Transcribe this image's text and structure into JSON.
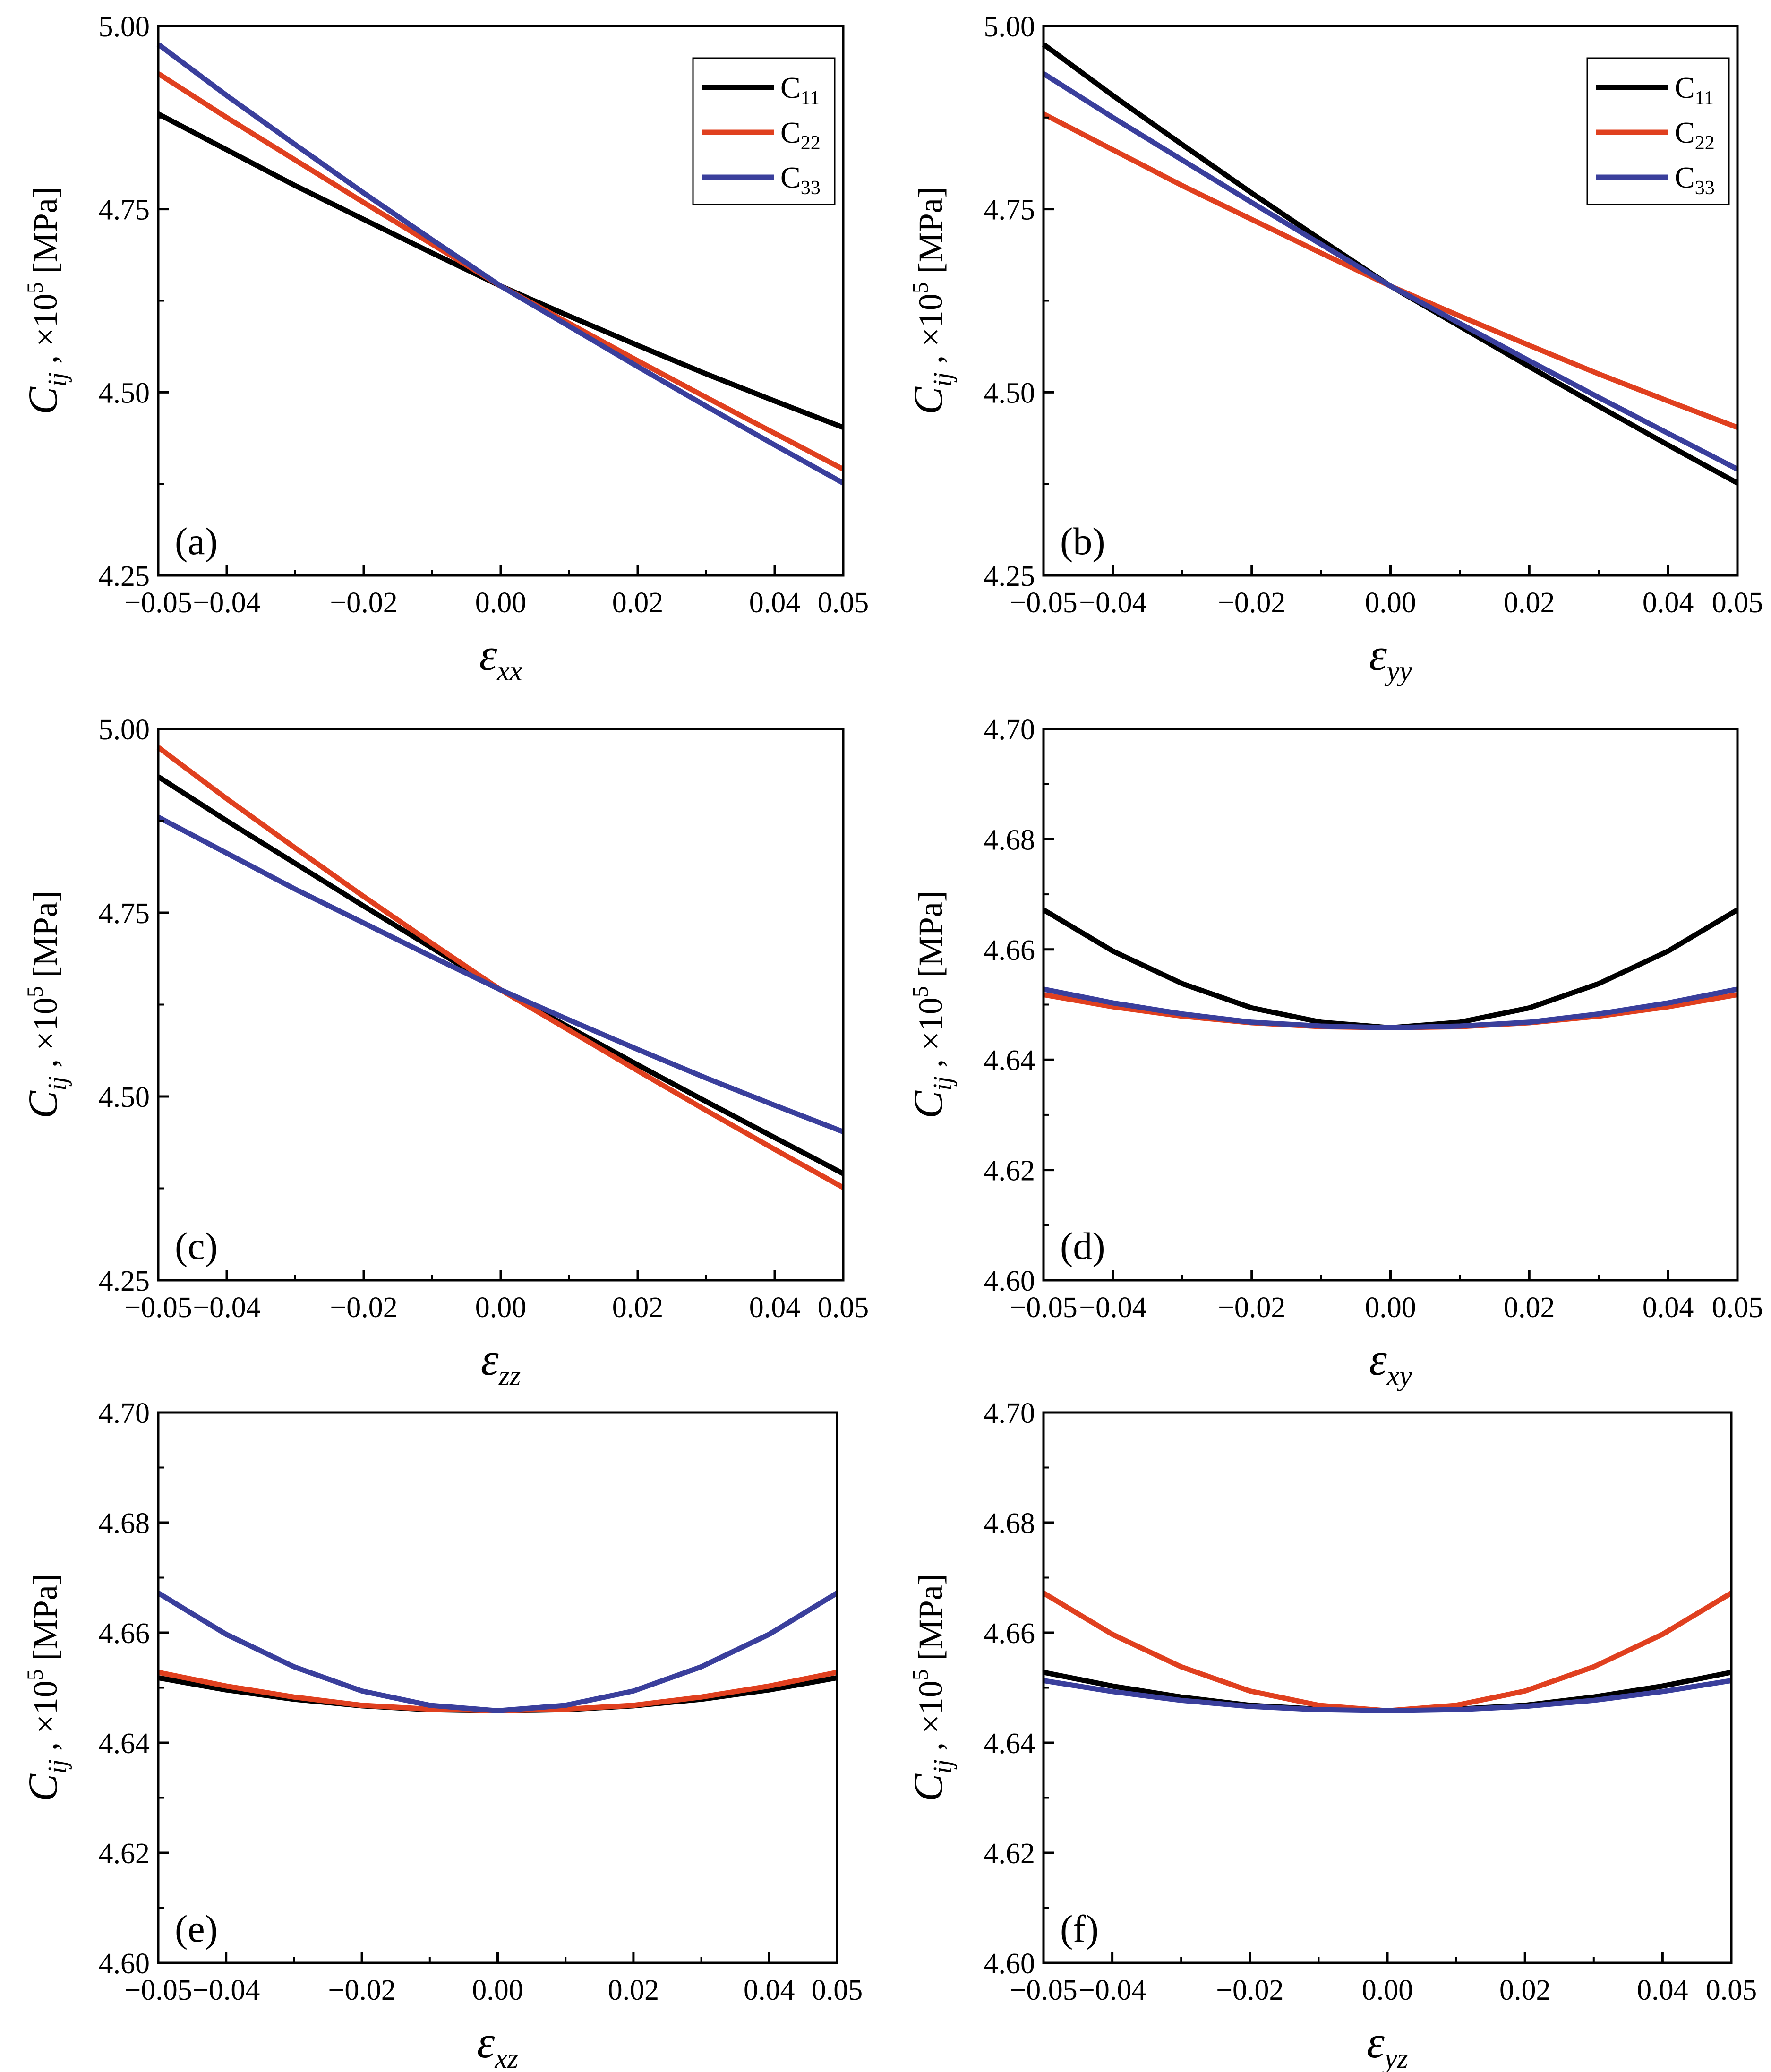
{
  "chart_data": [
    {
      "panel": "(a)",
      "type": "line",
      "xlabel": "ε",
      "xlabel_sub": "xx",
      "ylabel": {
        "sym": "C",
        "sub": "ij",
        "mid": " ,  ×10",
        "exp": "5",
        "unit": " [MPa]"
      },
      "xlim": [
        -0.05,
        0.05
      ],
      "ylim": [
        4.25,
        5.0
      ],
      "xticks": [
        "−0.05",
        "−0.04",
        "−0.02",
        "0.00",
        "0.02",
        "0.04",
        "0.05"
      ],
      "xtick_values": [
        -0.05,
        -0.04,
        -0.02,
        0.0,
        0.02,
        0.04,
        0.05
      ],
      "yticks": [
        "4.25",
        "4.50",
        "4.75",
        "5.00"
      ],
      "ytick_values": [
        4.25,
        4.5,
        4.75,
        5.0
      ],
      "legend": {
        "position": "top-right",
        "entries": [
          {
            "main": "C",
            "sub": "11",
            "color": "#000000"
          },
          {
            "main": "C",
            "sub": "22",
            "color": "#e0401f"
          },
          {
            "main": "C",
            "sub": "33",
            "color": "#3a3f9c"
          }
        ]
      },
      "series": [
        {
          "name": "C11",
          "color": "#000000",
          "x": [
            -0.05,
            -0.04,
            -0.03,
            -0.02,
            -0.01,
            0.0,
            0.01,
            0.02,
            0.03,
            0.04,
            0.05
          ],
          "values": [
            4.88,
            4.831,
            4.782,
            4.736,
            4.69,
            4.645,
            4.604,
            4.564,
            4.525,
            4.488,
            4.452
          ]
        },
        {
          "name": "C22",
          "color": "#e0401f",
          "x": [
            -0.05,
            -0.04,
            -0.03,
            -0.02,
            -0.01,
            0.0,
            0.01,
            0.02,
            0.03,
            0.04,
            0.05
          ],
          "values": [
            4.935,
            4.875,
            4.817,
            4.759,
            4.702,
            4.645,
            4.594,
            4.543,
            4.493,
            4.444,
            4.395
          ]
        },
        {
          "name": "C33",
          "color": "#3a3f9c",
          "x": [
            -0.05,
            -0.04,
            -0.03,
            -0.02,
            -0.01,
            0.0,
            0.01,
            0.02,
            0.03,
            0.04,
            0.05
          ],
          "values": [
            4.975,
            4.905,
            4.838,
            4.772,
            4.708,
            4.645,
            4.59,
            4.535,
            4.481,
            4.428,
            4.376
          ]
        }
      ]
    },
    {
      "panel": "(b)",
      "type": "line",
      "xlabel": "ε",
      "xlabel_sub": "yy",
      "ylabel": {
        "sym": "C",
        "sub": "ij",
        "mid": " ,  ×10",
        "exp": "5",
        "unit": " [MPa]"
      },
      "xlim": [
        -0.05,
        0.05
      ],
      "ylim": [
        4.25,
        5.0
      ],
      "xticks": [
        "−0.05",
        "−0.04",
        "−0.02",
        "0.00",
        "0.02",
        "0.04",
        "0.05"
      ],
      "xtick_values": [
        -0.05,
        -0.04,
        -0.02,
        0.0,
        0.02,
        0.04,
        0.05
      ],
      "yticks": [
        "4.25",
        "4.50",
        "4.75",
        "5.00"
      ],
      "ytick_values": [
        4.25,
        4.5,
        4.75,
        5.0
      ],
      "legend": {
        "position": "top-right",
        "entries": [
          {
            "main": "C",
            "sub": "11",
            "color": "#000000"
          },
          {
            "main": "C",
            "sub": "22",
            "color": "#e0401f"
          },
          {
            "main": "C",
            "sub": "33",
            "color": "#3a3f9c"
          }
        ]
      },
      "series": [
        {
          "name": "C11",
          "color": "#000000",
          "x": [
            -0.05,
            -0.04,
            -0.03,
            -0.02,
            -0.01,
            0.0,
            0.01,
            0.02,
            0.03,
            0.04,
            0.05
          ],
          "values": [
            4.975,
            4.905,
            4.838,
            4.772,
            4.708,
            4.645,
            4.59,
            4.535,
            4.481,
            4.428,
            4.376
          ]
        },
        {
          "name": "C22",
          "color": "#e0401f",
          "x": [
            -0.05,
            -0.04,
            -0.03,
            -0.02,
            -0.01,
            0.0,
            0.01,
            0.02,
            0.03,
            0.04,
            0.05
          ],
          "values": [
            4.88,
            4.831,
            4.782,
            4.736,
            4.69,
            4.645,
            4.604,
            4.564,
            4.525,
            4.488,
            4.452
          ]
        },
        {
          "name": "C33",
          "color": "#3a3f9c",
          "x": [
            -0.05,
            -0.04,
            -0.03,
            -0.02,
            -0.01,
            0.0,
            0.01,
            0.02,
            0.03,
            0.04,
            0.05
          ],
          "values": [
            4.935,
            4.875,
            4.817,
            4.759,
            4.702,
            4.645,
            4.594,
            4.543,
            4.493,
            4.444,
            4.395
          ]
        }
      ]
    },
    {
      "panel": "(c)",
      "type": "line",
      "xlabel": "ε",
      "xlabel_sub": "zz",
      "ylabel": {
        "sym": "C",
        "sub": "ij",
        "mid": " ,  ×10",
        "exp": "5",
        "unit": " [MPa]"
      },
      "xlim": [
        -0.05,
        0.05
      ],
      "ylim": [
        4.25,
        5.0
      ],
      "xticks": [
        "−0.05",
        "−0.04",
        "−0.02",
        "0.00",
        "0.02",
        "0.04",
        "0.05"
      ],
      "xtick_values": [
        -0.05,
        -0.04,
        -0.02,
        0.0,
        0.02,
        0.04,
        0.05
      ],
      "yticks": [
        "4.25",
        "4.50",
        "4.75",
        "5.00"
      ],
      "ytick_values": [
        4.25,
        4.5,
        4.75,
        5.0
      ],
      "legend": null,
      "series": [
        {
          "name": "C11",
          "color": "#000000",
          "x": [
            -0.05,
            -0.04,
            -0.03,
            -0.02,
            -0.01,
            0.0,
            0.01,
            0.02,
            0.03,
            0.04,
            0.05
          ],
          "values": [
            4.935,
            4.875,
            4.817,
            4.759,
            4.702,
            4.645,
            4.594,
            4.543,
            4.493,
            4.444,
            4.395
          ]
        },
        {
          "name": "C22",
          "color": "#e0401f",
          "x": [
            -0.05,
            -0.04,
            -0.03,
            -0.02,
            -0.01,
            0.0,
            0.01,
            0.02,
            0.03,
            0.04,
            0.05
          ],
          "values": [
            4.975,
            4.905,
            4.838,
            4.772,
            4.708,
            4.645,
            4.59,
            4.535,
            4.481,
            4.428,
            4.376
          ]
        },
        {
          "name": "C33",
          "color": "#3a3f9c",
          "x": [
            -0.05,
            -0.04,
            -0.03,
            -0.02,
            -0.01,
            0.0,
            0.01,
            0.02,
            0.03,
            0.04,
            0.05
          ],
          "values": [
            4.88,
            4.831,
            4.782,
            4.736,
            4.69,
            4.645,
            4.604,
            4.564,
            4.525,
            4.488,
            4.452
          ]
        }
      ]
    },
    {
      "panel": "(d)",
      "type": "line",
      "xlabel": "ε",
      "xlabel_sub": "xy",
      "ylabel": {
        "sym": "C",
        "sub": "ij",
        "mid": " ,  ×10",
        "exp": "5",
        "unit": " [MPa]"
      },
      "xlim": [
        -0.05,
        0.05
      ],
      "ylim": [
        4.6,
        4.7
      ],
      "xticks": [
        "−0.05",
        "−0.04",
        "−0.02",
        "0.00",
        "0.02",
        "0.04",
        "0.05"
      ],
      "xtick_values": [
        -0.05,
        -0.04,
        -0.02,
        0.0,
        0.02,
        0.04,
        0.05
      ],
      "yticks": [
        "4.60",
        "4.62",
        "4.64",
        "4.66",
        "4.68",
        "4.70"
      ],
      "ytick_values": [
        4.6,
        4.62,
        4.64,
        4.66,
        4.68,
        4.7
      ],
      "legend": null,
      "series": [
        {
          "name": "C11",
          "color": "#000000",
          "x": [
            -0.05,
            -0.04,
            -0.03,
            -0.02,
            -0.01,
            0.0,
            0.01,
            0.02,
            0.03,
            0.04,
            0.05
          ],
          "values": [
            4.6672,
            4.6597,
            4.6538,
            4.6494,
            4.6468,
            4.6458,
            4.6468,
            4.6494,
            4.6538,
            4.6597,
            4.6672
          ]
        },
        {
          "name": "C22",
          "color": "#e0401f",
          "x": [
            -0.05,
            -0.04,
            -0.03,
            -0.02,
            -0.01,
            0.0,
            0.01,
            0.02,
            0.03,
            0.04,
            0.05
          ],
          "values": [
            4.6518,
            4.6496,
            4.6479,
            4.6467,
            4.646,
            4.6458,
            4.646,
            4.6467,
            4.6479,
            4.6496,
            4.6518
          ]
        },
        {
          "name": "C33",
          "color": "#3a3f9c",
          "x": [
            -0.05,
            -0.04,
            -0.03,
            -0.02,
            -0.01,
            0.0,
            0.01,
            0.02,
            0.03,
            0.04,
            0.05
          ],
          "values": [
            4.6528,
            4.6503,
            4.6483,
            4.6468,
            4.6461,
            4.6458,
            4.6461,
            4.6468,
            4.6483,
            4.6503,
            4.6528
          ]
        }
      ]
    },
    {
      "panel": "(e)",
      "type": "line",
      "xlabel": "ε",
      "xlabel_sub": "xz",
      "ylabel": {
        "sym": "C",
        "sub": "ij",
        "mid": " ,  ×10",
        "exp": "5",
        "unit": " [MPa]"
      },
      "xlim": [
        -0.05,
        0.05
      ],
      "ylim": [
        4.6,
        4.7
      ],
      "xticks": [
        "−0.05",
        "−0.04",
        "−0.02",
        "0.00",
        "0.02",
        "0.04",
        "0.05"
      ],
      "xtick_values": [
        -0.05,
        -0.04,
        -0.02,
        0.0,
        0.02,
        0.04,
        0.05
      ],
      "yticks": [
        "4.60",
        "4.62",
        "4.64",
        "4.66",
        "4.68",
        "4.70"
      ],
      "ytick_values": [
        4.6,
        4.62,
        4.64,
        4.66,
        4.68,
        4.7
      ],
      "legend": null,
      "series": [
        {
          "name": "C11",
          "color": "#000000",
          "x": [
            -0.05,
            -0.04,
            -0.03,
            -0.02,
            -0.01,
            0.0,
            0.01,
            0.02,
            0.03,
            0.04,
            0.05
          ],
          "values": [
            4.6518,
            4.6496,
            4.6479,
            4.6467,
            4.646,
            4.6458,
            4.646,
            4.6467,
            4.6479,
            4.6496,
            4.6518
          ]
        },
        {
          "name": "C22",
          "color": "#e0401f",
          "x": [
            -0.05,
            -0.04,
            -0.03,
            -0.02,
            -0.01,
            0.0,
            0.01,
            0.02,
            0.03,
            0.04,
            0.05
          ],
          "values": [
            4.6528,
            4.6503,
            4.6483,
            4.6468,
            4.6461,
            4.6458,
            4.6461,
            4.6468,
            4.6483,
            4.6503,
            4.6528
          ]
        },
        {
          "name": "C33",
          "color": "#3a3f9c",
          "x": [
            -0.05,
            -0.04,
            -0.03,
            -0.02,
            -0.01,
            0.0,
            0.01,
            0.02,
            0.03,
            0.04,
            0.05
          ],
          "values": [
            4.6672,
            4.6597,
            4.6538,
            4.6494,
            4.6468,
            4.6458,
            4.6468,
            4.6494,
            4.6538,
            4.6597,
            4.6672
          ]
        }
      ]
    },
    {
      "panel": "(f)",
      "type": "line",
      "xlabel": "ε",
      "xlabel_sub": "yz",
      "ylabel": {
        "sym": "C",
        "sub": "ij",
        "mid": " ,  ×10",
        "exp": "5",
        "unit": " [MPa]"
      },
      "xlim": [
        -0.05,
        0.05
      ],
      "ylim": [
        4.6,
        4.7
      ],
      "xticks": [
        "−0.05",
        "−0.04",
        "−0.02",
        "0.00",
        "0.02",
        "0.04",
        "0.05"
      ],
      "xtick_values": [
        -0.05,
        -0.04,
        -0.02,
        0.0,
        0.02,
        0.04,
        0.05
      ],
      "yticks": [
        "4.60",
        "4.62",
        "4.64",
        "4.66",
        "4.68",
        "4.70"
      ],
      "ytick_values": [
        4.6,
        4.62,
        4.64,
        4.66,
        4.68,
        4.7
      ],
      "legend": null,
      "series": [
        {
          "name": "C11",
          "color": "#000000",
          "x": [
            -0.05,
            -0.04,
            -0.03,
            -0.02,
            -0.01,
            0.0,
            0.01,
            0.02,
            0.03,
            0.04,
            0.05
          ],
          "values": [
            4.6528,
            4.6503,
            4.6483,
            4.6468,
            4.6461,
            4.6458,
            4.6461,
            4.6468,
            4.6483,
            4.6503,
            4.6528
          ]
        },
        {
          "name": "C22",
          "color": "#e0401f",
          "x": [
            -0.05,
            -0.04,
            -0.03,
            -0.02,
            -0.01,
            0.0,
            0.01,
            0.02,
            0.03,
            0.04,
            0.05
          ],
          "values": [
            4.6672,
            4.6597,
            4.6538,
            4.6494,
            4.6468,
            4.6458,
            4.6468,
            4.6494,
            4.6538,
            4.6597,
            4.6672
          ]
        },
        {
          "name": "C33",
          "color": "#3a3f9c",
          "x": [
            -0.05,
            -0.04,
            -0.03,
            -0.02,
            -0.01,
            0.0,
            0.01,
            0.02,
            0.03,
            0.04,
            0.05
          ],
          "values": [
            4.6513,
            4.6493,
            4.6477,
            4.6466,
            4.646,
            4.6458,
            4.646,
            4.6466,
            4.6477,
            4.6493,
            4.6513
          ]
        }
      ]
    }
  ]
}
